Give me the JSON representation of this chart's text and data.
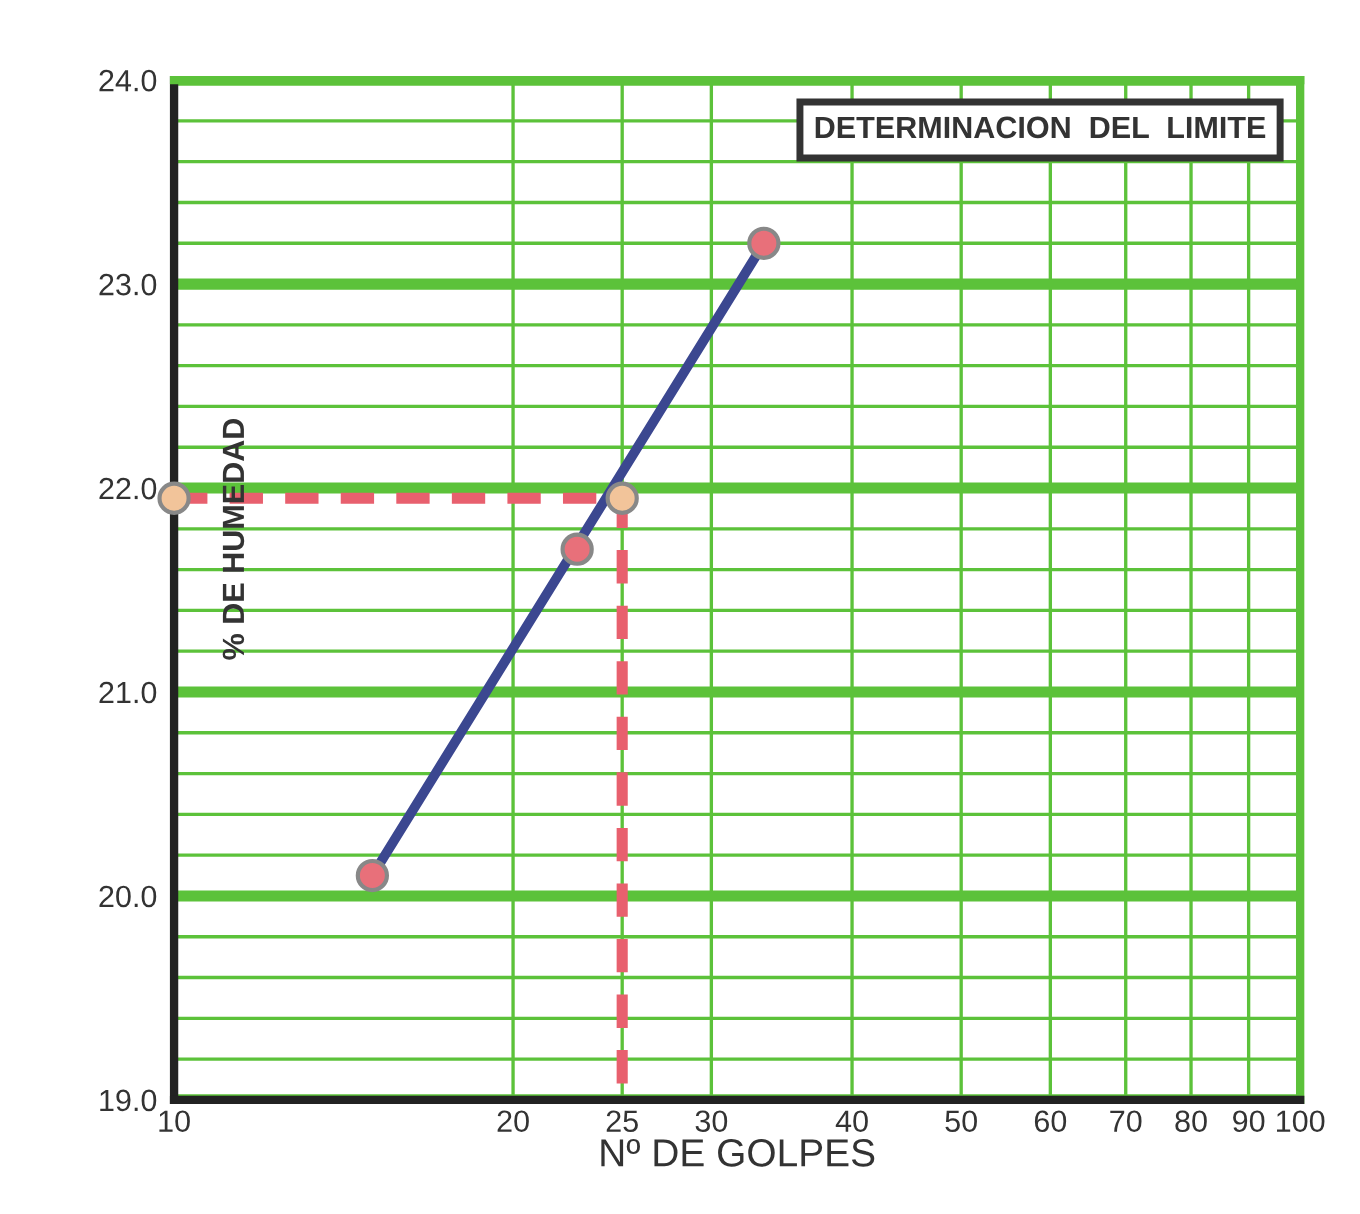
{
  "chart_data": {
    "type": "line",
    "title": "DETERMINACION  DEL  LIMITE",
    "xlabel": "Nº DE GOLPES",
    "ylabel": "% DE HUMEDAD",
    "log": "x",
    "xlim": [
      10,
      100
    ],
    "xticks": [
      10,
      20,
      25,
      30,
      40,
      50,
      60,
      70,
      80,
      90,
      100
    ],
    "ylim": [
      19,
      24
    ],
    "yticks": [
      {
        "value": 19,
        "label": "19.0"
      },
      {
        "value": 19.2,
        "label": null
      },
      {
        "value": 19.4,
        "label": null
      },
      {
        "value": 19.6,
        "label": null
      },
      {
        "value": 19.8,
        "label": null
      },
      {
        "value": 20,
        "label": "20.0"
      },
      {
        "value": 20.2,
        "label": null
      },
      {
        "value": 20.4,
        "label": null
      },
      {
        "value": 20.6,
        "label": null
      },
      {
        "value": 20.8,
        "label": null
      },
      {
        "value": 21,
        "label": "21.0"
      },
      {
        "value": 21.2,
        "label": null
      },
      {
        "value": 21.4,
        "label": null
      },
      {
        "value": 21.6,
        "label": null
      },
      {
        "value": 21.8,
        "label": null
      },
      {
        "value": 22,
        "label": "22.0"
      },
      {
        "value": 22.2,
        "label": null
      },
      {
        "value": 22.4,
        "label": null
      },
      {
        "value": 22.6,
        "label": null
      },
      {
        "value": 22.8,
        "label": null
      },
      {
        "value": 23,
        "label": "23.0"
      },
      {
        "value": 23.2,
        "label": null
      },
      {
        "value": 23.4,
        "label": null
      },
      {
        "value": 23.6,
        "label": null
      },
      {
        "value": 23.8,
        "label": null
      },
      {
        "value": 24,
        "label": "24.0"
      }
    ],
    "grid": true,
    "legend": false,
    "series": [
      {
        "x": [
          15,
          33.4
        ],
        "values": [
          20.1,
          23.2
        ],
        "color": "#3b4790",
        "marker": "none",
        "line_style": "solid"
      },
      {
        "x": [
          10,
          25,
          25
        ],
        "values": [
          21.95,
          21.95,
          19.0
        ],
        "color": "#e8606e",
        "marker": "none",
        "line_style": "dashed"
      },
      {
        "type": "scatter",
        "x": [
          15,
          22.8,
          33.4
        ],
        "values": [
          20.1,
          21.7,
          23.2
        ],
        "color": "#e8707a",
        "marker": "circle"
      },
      {
        "type": "scatter",
        "x": [
          10,
          25
        ],
        "values": [
          21.95,
          21.95
        ],
        "color": "#f2c49a",
        "marker": "circle"
      }
    ]
  }
}
